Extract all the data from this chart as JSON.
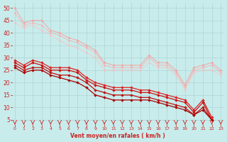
{
  "xlabel": "Vent moyen/en rafales ( km/h )",
  "background_color": "#c8ecec",
  "grid_color": "#aacccc",
  "x_ticks": [
    0,
    1,
    2,
    3,
    4,
    5,
    6,
    7,
    8,
    9,
    10,
    11,
    12,
    13,
    14,
    15,
    16,
    17,
    18,
    19,
    20,
    21,
    22,
    23
  ],
  "y_ticks": [
    5,
    10,
    15,
    20,
    25,
    30,
    35,
    40,
    45,
    50
  ],
  "ylim": [
    3,
    52
  ],
  "xlim": [
    -0.3,
    23.3
  ],
  "series": [
    {
      "color": "#ff9999",
      "alpha": 0.7,
      "linewidth": 0.9,
      "markersize": 2.0,
      "marker": "D",
      "data_x": [
        0,
        1,
        2,
        3,
        4,
        5,
        6,
        7,
        8,
        9,
        10,
        11,
        12,
        13,
        14,
        15,
        16,
        17,
        18,
        19,
        20,
        21,
        22,
        23
      ],
      "data_y": [
        50,
        44,
        45,
        45,
        41,
        40,
        38,
        37,
        35,
        33,
        28,
        27,
        27,
        27,
        27,
        31,
        28,
        28,
        25,
        19,
        26,
        27,
        28,
        25
      ]
    },
    {
      "color": "#ffaaaa",
      "alpha": 0.65,
      "linewidth": 0.9,
      "markersize": 2.0,
      "marker": "D",
      "data_x": [
        0,
        1,
        2,
        3,
        4,
        5,
        6,
        7,
        8,
        9,
        10,
        11,
        12,
        13,
        14,
        15,
        16,
        17,
        18,
        19,
        20,
        21,
        22,
        23
      ],
      "data_y": [
        48,
        43,
        44,
        43,
        40,
        39,
        37,
        36,
        34,
        32,
        27,
        26,
        26,
        26,
        26,
        30,
        27,
        27,
        24,
        18,
        25,
        26,
        27,
        24
      ]
    },
    {
      "color": "#ffbbbb",
      "alpha": 0.55,
      "linewidth": 0.9,
      "markersize": 2.0,
      "marker": "D",
      "data_x": [
        0,
        1,
        2,
        3,
        4,
        5,
        6,
        7,
        8,
        9,
        10,
        11,
        12,
        13,
        14,
        15,
        16,
        17,
        18,
        19,
        20,
        21,
        22,
        23
      ],
      "data_y": [
        44,
        42,
        43,
        41,
        39,
        37,
        35,
        34,
        32,
        30,
        25,
        25,
        25,
        25,
        25,
        28,
        26,
        26,
        23,
        17,
        24,
        25,
        25,
        23
      ]
    },
    {
      "color": "#dd2222",
      "alpha": 1.0,
      "linewidth": 0.9,
      "markersize": 2.2,
      "marker": "D",
      "data_x": [
        0,
        1,
        2,
        3,
        4,
        5,
        6,
        7,
        8,
        9,
        10,
        11,
        12,
        13,
        14,
        15,
        16,
        17,
        18,
        19,
        20,
        21,
        22,
        23
      ],
      "data_y": [
        29,
        27,
        29,
        28,
        26,
        26,
        26,
        25,
        22,
        20,
        19,
        18,
        18,
        18,
        17,
        17,
        16,
        15,
        14,
        13,
        9,
        13,
        6,
        null
      ]
    },
    {
      "color": "#cc1111",
      "alpha": 1.0,
      "linewidth": 0.9,
      "markersize": 2.2,
      "marker": "D",
      "data_x": [
        0,
        1,
        2,
        3,
        4,
        5,
        6,
        7,
        8,
        9,
        10,
        11,
        12,
        13,
        14,
        15,
        16,
        17,
        18,
        19,
        20,
        21,
        22,
        23
      ],
      "data_y": [
        28,
        26,
        28,
        27,
        25,
        25,
        25,
        24,
        21,
        19,
        18,
        17,
        17,
        17,
        16,
        16,
        15,
        14,
        13,
        12,
        8,
        12,
        5,
        null
      ]
    },
    {
      "color": "#bb1111",
      "alpha": 1.0,
      "linewidth": 0.9,
      "markersize": 2.2,
      "marker": "D",
      "data_x": [
        0,
        1,
        2,
        3,
        4,
        5,
        6,
        7,
        8,
        9,
        10,
        11,
        12,
        13,
        14,
        15,
        16,
        17,
        18,
        19,
        20,
        21,
        22,
        23
      ],
      "data_y": [
        27,
        25,
        26,
        26,
        24,
        23,
        23,
        22,
        20,
        17,
        16,
        15,
        15,
        15,
        14,
        14,
        13,
        12,
        11,
        10,
        7,
        10,
        5,
        null
      ]
    },
    {
      "color": "#aa0000",
      "alpha": 1.0,
      "linewidth": 0.9,
      "markersize": 2.2,
      "marker": "D",
      "data_x": [
        0,
        1,
        2,
        3,
        4,
        5,
        6,
        7,
        8,
        9,
        10,
        11,
        12,
        13,
        14,
        15,
        16,
        17,
        18,
        19,
        20,
        21,
        22,
        23
      ],
      "data_y": [
        26,
        24,
        25,
        25,
        23,
        22,
        21,
        20,
        18,
        15,
        14,
        13,
        13,
        13,
        13,
        13,
        12,
        11,
        10,
        9,
        7,
        9,
        5,
        null
      ]
    }
  ],
  "arrow_color": "#cc2222",
  "xlabel_color": "#cc2222",
  "tick_color": "#cc2222",
  "xlabel_fontsize": 5.5,
  "xlabel_fontweight": "bold",
  "ytick_fontsize": 5.5,
  "xtick_fontsize": 4.5
}
